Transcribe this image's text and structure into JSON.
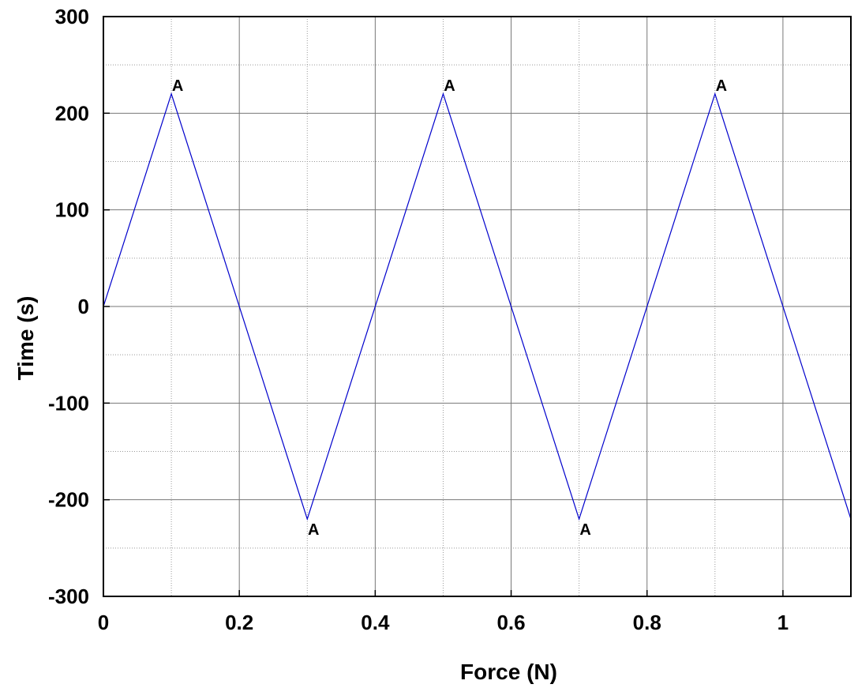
{
  "chart_data": {
    "type": "line",
    "title": "",
    "xlabel": "Force (N)",
    "ylabel": "Time (s)",
    "xlim": [
      0,
      1.1
    ],
    "ylim": [
      -300,
      300
    ],
    "x_ticks": [
      0,
      0.2,
      0.4,
      0.6,
      0.8,
      1
    ],
    "x_tick_labels": [
      "0",
      "0.2",
      "0.4",
      "0.6",
      "0.8",
      "1"
    ],
    "y_ticks": [
      300,
      200,
      100,
      0,
      -100,
      -200,
      -300
    ],
    "y_tick_labels": [
      "300",
      "200",
      "100",
      "0",
      "-100",
      "-200",
      "-300"
    ],
    "grid": true,
    "minor_grid": true,
    "series": [
      {
        "color": "#0000cc",
        "x": [
          0,
          0.1,
          0.3,
          0.5,
          0.7,
          0.9,
          1.1
        ],
        "y": [
          0,
          220,
          -220,
          220,
          -220,
          220,
          -220
        ]
      }
    ],
    "annotations": [
      {
        "text": "A",
        "x": 0.1,
        "y": 220,
        "position": "above"
      },
      {
        "text": "A",
        "x": 0.3,
        "y": -220,
        "position": "below"
      },
      {
        "text": "A",
        "x": 0.5,
        "y": 220,
        "position": "above"
      },
      {
        "text": "A",
        "x": 0.7,
        "y": -220,
        "position": "below"
      },
      {
        "text": "A",
        "x": 0.9,
        "y": 220,
        "position": "above"
      }
    ]
  }
}
